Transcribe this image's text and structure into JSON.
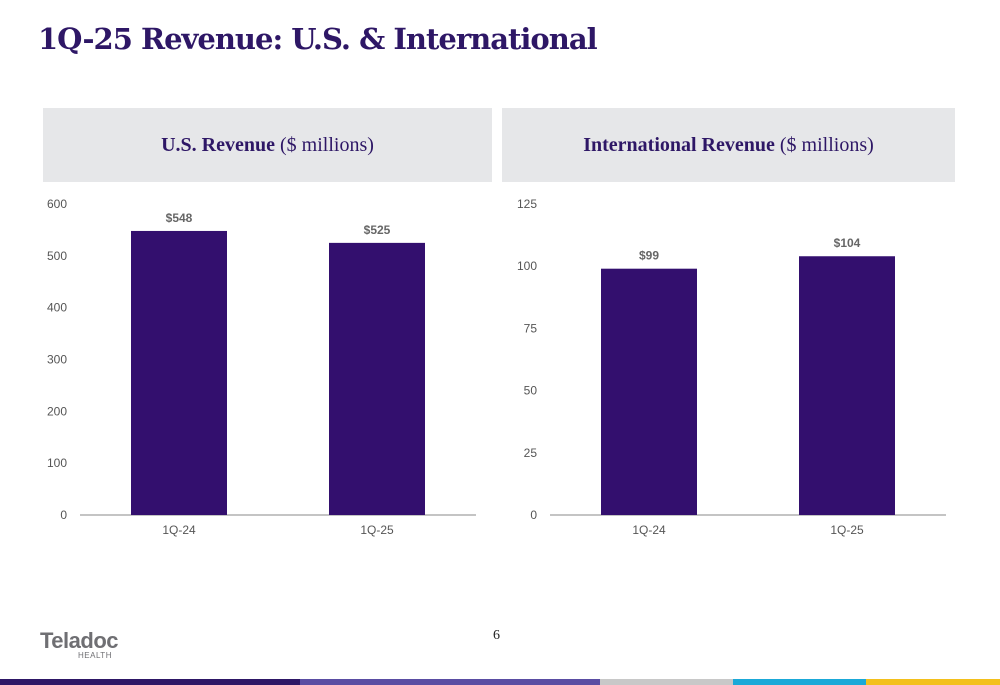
{
  "page": {
    "title": "1Q-25 Revenue: U.S. & International",
    "page_number": "6",
    "logo": {
      "word": "Teladoc",
      "sub": "HEALTH"
    },
    "stripe_colors": [
      "#2e1766",
      "#5a4da3",
      "#c8c8c8",
      "#1ba9d8",
      "#f3c01c"
    ]
  },
  "headers": {
    "us": {
      "bold": "U.S. Revenue",
      "unit": "($ millions)"
    },
    "intl": {
      "bold": "International Revenue",
      "unit": "($ millions)"
    }
  },
  "chart_data": [
    {
      "type": "bar",
      "title": "U.S. Revenue ($ millions)",
      "categories": [
        "1Q-24",
        "1Q-25"
      ],
      "values": [
        548,
        525
      ],
      "data_labels": [
        "$548",
        "$525"
      ],
      "ylim": [
        0,
        600
      ],
      "yticks": [
        0,
        100,
        200,
        300,
        400,
        500,
        600
      ],
      "bar_color": "#330f6e",
      "grid": false
    },
    {
      "type": "bar",
      "title": "International Revenue ($ millions)",
      "categories": [
        "1Q-24",
        "1Q-25"
      ],
      "values": [
        99,
        104
      ],
      "data_labels": [
        "$99",
        "$104"
      ],
      "ylim": [
        0,
        125
      ],
      "yticks": [
        0,
        25,
        50,
        75,
        100,
        125
      ],
      "bar_color": "#330f6e",
      "grid": false
    }
  ]
}
